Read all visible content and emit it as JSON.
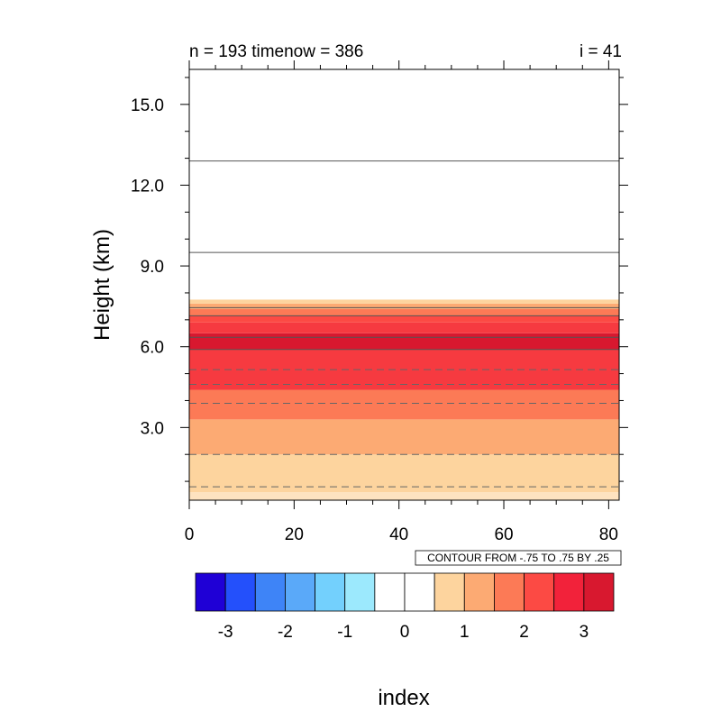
{
  "chart_data": {
    "type": "heatmap",
    "title_left": "n = 193 timenow = 386",
    "title_right": "i = 41",
    "xlabel": "index",
    "ylabel": "Height (km)",
    "xlim": [
      0,
      82
    ],
    "ylim": [
      0.3,
      16.3
    ],
    "x_ticks": [
      {
        "value": 0,
        "label": "0"
      },
      {
        "value": 20,
        "label": "20"
      },
      {
        "value": 40,
        "label": "40"
      },
      {
        "value": 60,
        "label": "60"
      },
      {
        "value": 80,
        "label": "80"
      }
    ],
    "y_ticks": [
      {
        "value": 3.0,
        "label": "3.0"
      },
      {
        "value": 6.0,
        "label": "6.0"
      },
      {
        "value": 9.0,
        "label": "9.0"
      },
      {
        "value": 12.0,
        "label": "12.0"
      },
      {
        "value": 15.0,
        "label": "15.0"
      }
    ],
    "contour_info": "CONTOUR FROM -.75 TO .75 BY .25",
    "bands": [
      {
        "y0": 0.3,
        "y1": 0.6,
        "color": "#fee3c0"
      },
      {
        "y0": 0.6,
        "y1": 2.0,
        "color": "#fdd49e"
      },
      {
        "y0": 2.0,
        "y1": 3.3,
        "color": "#fcaa73"
      },
      {
        "y0": 3.3,
        "y1": 4.4,
        "color": "#fc7a56"
      },
      {
        "y0": 4.4,
        "y1": 5.9,
        "color": "#f63a40"
      },
      {
        "y0": 5.9,
        "y1": 6.5,
        "color": "#d8182f"
      },
      {
        "y0": 6.5,
        "y1": 6.9,
        "color": "#f63a40"
      },
      {
        "y0": 6.9,
        "y1": 7.15,
        "color": "#fc4a44"
      },
      {
        "y0": 7.15,
        "y1": 7.4,
        "color": "#fc7a56"
      },
      {
        "y0": 7.4,
        "y1": 7.6,
        "color": "#fcaa73"
      },
      {
        "y0": 7.6,
        "y1": 7.75,
        "color": "#fdd49e"
      }
    ],
    "solid_contours": [
      5.9,
      6.35,
      7.15,
      7.45,
      9.5,
      12.9
    ],
    "dashed_contours": [
      0.8,
      2.0,
      3.9,
      4.6,
      5.15
    ],
    "colorbar": {
      "colors": [
        "#1f00d6",
        "#2450fb",
        "#3e84f7",
        "#5aa9f9",
        "#73d0fd",
        "#9ce9fd",
        "#ffffff",
        "#ffffff",
        "#fdd49e",
        "#fcaa73",
        "#fc7a56",
        "#fc4a44",
        "#f2223a",
        "#d8182f"
      ],
      "labels": [
        "-3",
        "-2",
        "-1",
        "0",
        "1",
        "2",
        "3"
      ]
    }
  }
}
